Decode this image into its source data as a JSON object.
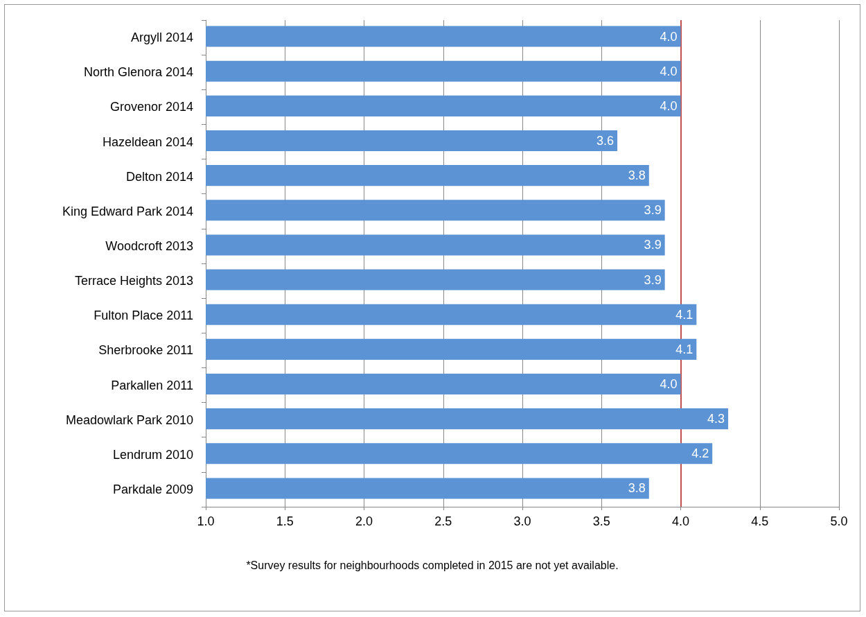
{
  "chart_data": {
    "type": "bar",
    "orientation": "horizontal",
    "categories": [
      "Argyll 2014",
      "North Glenora 2014",
      "Grovenor 2014",
      "Hazeldean 2014",
      "Delton 2014",
      "King Edward Park 2014",
      "Woodcroft 2013",
      "Terrace Heights 2013",
      "Fulton Place 2011",
      "Sherbrooke 2011",
      "Parkallen 2011",
      "Meadowlark Park 2010",
      "Lendrum 2010",
      "Parkdale 2009"
    ],
    "values": [
      4.0,
      4.0,
      4.0,
      3.6,
      3.8,
      3.9,
      3.9,
      3.9,
      4.1,
      4.1,
      4.0,
      4.3,
      4.2,
      3.8
    ],
    "value_labels": [
      "4.0",
      "4.0",
      "4.0",
      "3.6",
      "3.8",
      "3.9",
      "3.9",
      "3.9",
      "4.1",
      "4.1",
      "4.0",
      "4.3",
      "4.2",
      "3.8"
    ],
    "color": "#5b93d5",
    "xlim": [
      1,
      5
    ],
    "xticks": [
      {
        "value": 1,
        "label": "1.0"
      },
      {
        "value": 1.5,
        "label": "1.5"
      },
      {
        "value": 2,
        "label": "2.0"
      },
      {
        "value": 2.5,
        "label": "2.5"
      },
      {
        "value": 3,
        "label": "3.0"
      },
      {
        "value": 3.5,
        "label": "3.5"
      },
      {
        "value": 4,
        "label": "4.0"
      },
      {
        "value": 4.5,
        "label": "4.5"
      },
      {
        "value": 5,
        "label": "5.0"
      }
    ],
    "grid": "x",
    "ref_lines": [
      {
        "axis": "x",
        "value": 4.0,
        "label": null,
        "color": "#c0504d"
      }
    ],
    "annotations": [
      "*Survey results for neighbourhoods completed in 2015 are not yet available."
    ]
  }
}
